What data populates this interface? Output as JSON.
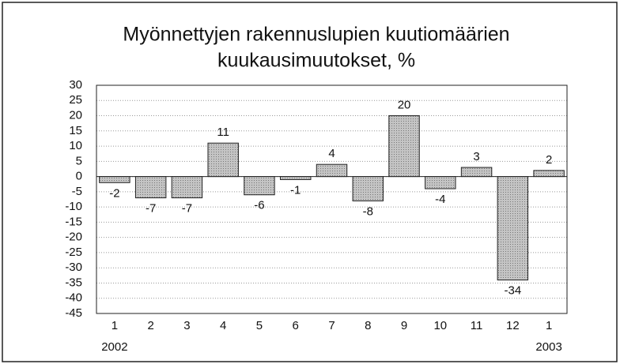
{
  "chart_data": {
    "type": "bar",
    "title": [
      "Myönnettyjen rakennuslupien kuutiomäärien",
      "kuukausimuutokset, %"
    ],
    "categories": [
      "1",
      "2",
      "3",
      "4",
      "5",
      "6",
      "7",
      "8",
      "9",
      "10",
      "11",
      "12",
      "1"
    ],
    "year_labels": [
      "2002",
      null,
      null,
      null,
      null,
      null,
      null,
      null,
      null,
      null,
      null,
      null,
      "2003"
    ],
    "values": [
      -2,
      -7,
      -7,
      11,
      -6,
      -1,
      4,
      -8,
      20,
      -4,
      3,
      -34,
      2
    ],
    "color": "#b8b8b8",
    "ylim": [
      -45,
      30
    ],
    "yticks": [
      -45,
      -40,
      -35,
      -30,
      -25,
      -20,
      -15,
      -10,
      -5,
      0,
      5,
      10,
      15,
      20,
      25,
      30
    ],
    "grid": true
  }
}
